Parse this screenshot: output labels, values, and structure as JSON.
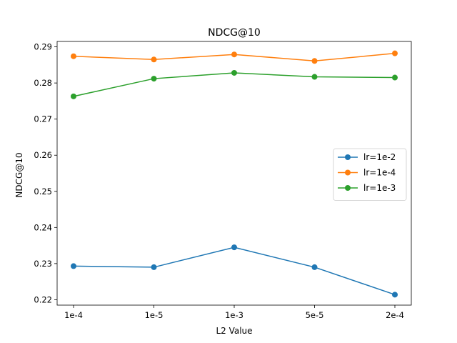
{
  "chart_data": {
    "type": "line",
    "title": "NDCG@10",
    "xlabel": "L2 Value",
    "ylabel": "NDCG@10",
    "categories": [
      "1e-4",
      "1e-5",
      "1e-3",
      "5e-5",
      "2e-4"
    ],
    "ylim": [
      0.2185,
      0.2915
    ],
    "yticks": [
      0.22,
      0.23,
      0.24,
      0.25,
      0.26,
      0.27,
      0.28,
      0.29
    ],
    "grid": false,
    "legend_position": "center-right",
    "series": [
      {
        "name": "lr=1e-2",
        "color": "#1f77b4",
        "values": [
          0.2293,
          0.229,
          0.2345,
          0.229,
          0.2214
        ]
      },
      {
        "name": "lr=1e-4",
        "color": "#ff7f0e",
        "values": [
          0.2874,
          0.2865,
          0.2879,
          0.2861,
          0.2882
        ]
      },
      {
        "name": "lr=1e-3",
        "color": "#2ca02c",
        "values": [
          0.2763,
          0.2812,
          0.2828,
          0.2817,
          0.2815
        ]
      }
    ]
  }
}
